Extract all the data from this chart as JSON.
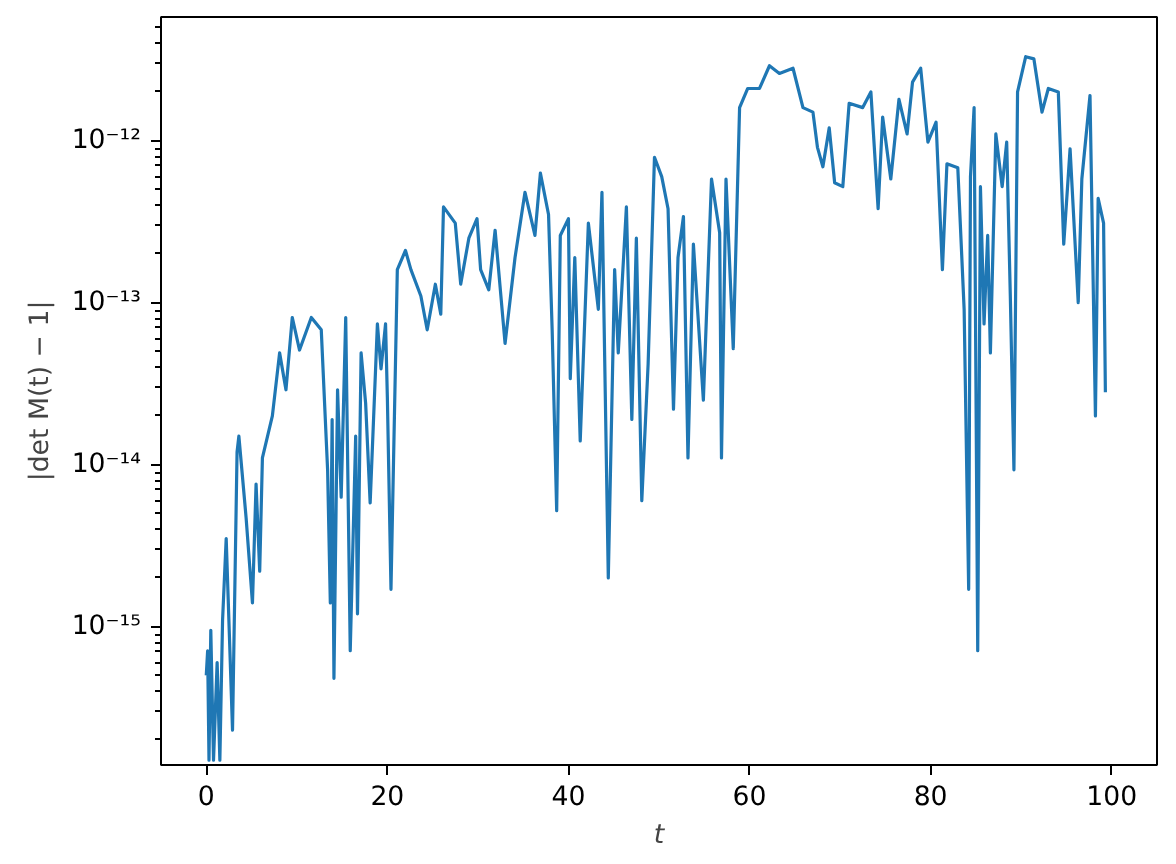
{
  "chart_data": {
    "type": "line",
    "xlabel": "t",
    "ylabel": "|det M(t) − 1|",
    "log": "y",
    "grid": false,
    "marker": "none",
    "line_style": "solid",
    "xlim": [
      -5,
      105
    ],
    "xticks": [
      0,
      20,
      40,
      60,
      80,
      100
    ],
    "ylim": [
      1.4e-16,
      5.8e-12
    ],
    "yticks": [
      {
        "value": 1e-15,
        "label": "10⁻¹⁵"
      },
      {
        "value": 1e-14,
        "label": "10⁻¹⁴"
      },
      {
        "value": 1e-13,
        "label": "10⁻¹³"
      },
      {
        "value": 1e-12,
        "label": "10⁻¹²"
      }
    ],
    "x": [
      0.0,
      0.15,
      0.3,
      0.5,
      0.8,
      1.2,
      1.5,
      1.8,
      2.2,
      2.9,
      3.4,
      3.6,
      4.4,
      5.1,
      5.5,
      5.9,
      6.2,
      7.3,
      8.1,
      8.8,
      9.5,
      10.3,
      11.6,
      12.7,
      13.4,
      13.7,
      13.9,
      14.1,
      14.5,
      14.9,
      15.4,
      15.9,
      16.5,
      16.7,
      17.1,
      17.6,
      18.1,
      18.9,
      19.3,
      19.8,
      20.0,
      20.4,
      21.1,
      22.0,
      22.6,
      23.7,
      24.4,
      25.3,
      25.9,
      26.2,
      27.5,
      28.1,
      29.0,
      29.9,
      30.3,
      31.2,
      31.9,
      33.0,
      34.1,
      35.2,
      36.3,
      36.9,
      37.8,
      38.2,
      38.7,
      39.1,
      40.0,
      40.2,
      40.7,
      41.3,
      42.2,
      43.3,
      43.7,
      44.4,
      45.1,
      45.5,
      46.4,
      47.0,
      47.5,
      48.1,
      48.8,
      49.5,
      50.3,
      51.0,
      51.6,
      52.1,
      52.7,
      53.2,
      53.8,
      54.9,
      55.8,
      56.7,
      56.9,
      57.4,
      58.2,
      58.9,
      59.8,
      61.1,
      62.2,
      63.3,
      64.8,
      65.9,
      67.0,
      67.5,
      68.1,
      68.8,
      69.4,
      70.3,
      71.0,
      72.5,
      73.4,
      74.2,
      74.7,
      75.6,
      76.5,
      77.4,
      78.0,
      78.9,
      79.7,
      80.6,
      81.3,
      81.8,
      83.0,
      83.7,
      84.2,
      84.4,
      84.8,
      85.2,
      85.5,
      85.9,
      86.3,
      86.6,
      87.2,
      87.9,
      88.4,
      88.8,
      89.2,
      89.6,
      90.5,
      91.4,
      92.3,
      93.0,
      94.1,
      94.7,
      95.4,
      96.3,
      96.7,
      97.6,
      98.2,
      98.5,
      99.1,
      99.3
    ],
    "series": [
      {
        "color": "#1f77b4",
        "values": [
          5e-16,
          7.1e-16,
          1.5e-16,
          9.5e-16,
          1.5e-16,
          6e-16,
          1.5e-16,
          1.1e-15,
          3.5e-15,
          2.3e-16,
          1.2e-14,
          1.5e-14,
          4.7e-15,
          1.4e-15,
          7.6e-15,
          2.2e-15,
          1.1e-14,
          2e-14,
          4.9e-14,
          2.9e-14,
          8.1e-14,
          5.1e-14,
          8.1e-14,
          6.8e-14,
          9.3e-15,
          1.4e-15,
          1.9e-14,
          4.8e-16,
          2.9e-14,
          6.3e-15,
          8.1e-14,
          7.1e-16,
          1.5e-14,
          1.2e-15,
          4.9e-14,
          2.4e-14,
          5.8e-15,
          7.4e-14,
          3.9e-14,
          7.4e-14,
          2.6e-14,
          1.7e-15,
          1.6e-13,
          2.1e-13,
          1.6e-13,
          1.1e-13,
          6.8e-14,
          1.3e-13,
          8.5e-14,
          3.9e-13,
          3.1e-13,
          1.3e-13,
          2.5e-13,
          3.3e-13,
          1.6e-13,
          1.2e-13,
          2.8e-13,
          5.6e-14,
          1.9e-13,
          4.8e-13,
          2.6e-13,
          6.3e-13,
          3.5e-13,
          6.8e-14,
          5.2e-15,
          2.6e-13,
          3.3e-13,
          3.4e-14,
          1.9e-13,
          1.4e-14,
          3.1e-13,
          9.1e-14,
          4.8e-13,
          2e-15,
          1.6e-13,
          4.9e-14,
          3.9e-13,
          1.9e-14,
          2.5e-13,
          6e-15,
          4.2e-14,
          7.9e-13,
          6e-13,
          3.8e-13,
          2.2e-14,
          1.9e-13,
          3.4e-13,
          1.1e-14,
          2.3e-13,
          2.5e-14,
          5.8e-13,
          2.7e-13,
          1.1e-14,
          5.8e-13,
          5.2e-14,
          1.6e-12,
          2.1e-12,
          2.1e-12,
          2.9e-12,
          2.6e-12,
          2.8e-12,
          1.6e-12,
          1.5e-12,
          9.1e-13,
          6.9e-13,
          1.2e-12,
          5.5e-13,
          5.2e-13,
          1.7e-12,
          1.6e-12,
          2e-12,
          3.8e-13,
          1.4e-12,
          5.8e-13,
          1.8e-12,
          1.1e-12,
          2.3e-12,
          2.8e-12,
          9.8e-13,
          1.3e-12,
          1.6e-13,
          7.2e-13,
          6.8e-13,
          9.1e-14,
          1.7e-15,
          6e-13,
          1.6e-12,
          7.1e-16,
          5.2e-13,
          7.4e-14,
          2.6e-13,
          4.9e-14,
          1.1e-12,
          5.2e-13,
          9.8e-13,
          1.1e-13,
          9.3e-15,
          2e-12,
          3.3e-12,
          3.2e-12,
          1.5e-12,
          2.1e-12,
          2e-12,
          2.3e-13,
          8.9e-13,
          1e-13,
          5.8e-13,
          1.9e-12,
          2e-14,
          4.4e-13,
          3.1e-13,
          2.8e-14
        ]
      }
    ]
  }
}
